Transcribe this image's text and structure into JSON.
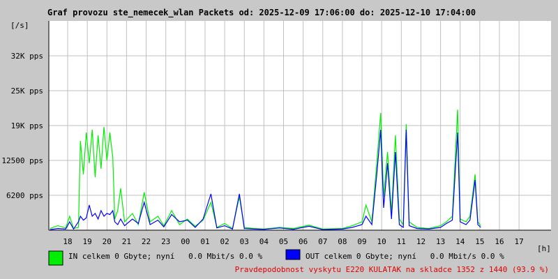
{
  "chart_data": {
    "type": "line",
    "title": "Graf provozu ste_nemecek_wlan Packets od: 2025-12-09 17:06:00 do: 2025-12-10 17:04:00",
    "y_unit": "[/s]",
    "x_unit": "[h]",
    "footnote": "Pravdepodobnost vyskytu E220 KULATAK na skladce 1352 z 1440 (93.9 %)",
    "xlim": [
      17.04,
      42.63
    ],
    "xticks": [
      18,
      19,
      20,
      21,
      22,
      23,
      {
        "value": 24,
        "label": "00"
      },
      {
        "value": 25,
        "label": "01"
      },
      {
        "value": 26,
        "label": "02"
      },
      {
        "value": 27,
        "label": "03"
      },
      {
        "value": 28,
        "label": "04"
      },
      {
        "value": 29,
        "label": "05"
      },
      {
        "value": 30,
        "label": "06"
      },
      {
        "value": 31,
        "label": "07"
      },
      {
        "value": 32,
        "label": "08"
      },
      {
        "value": 33,
        "label": "09"
      },
      {
        "value": 34,
        "label": "10"
      },
      {
        "value": 35,
        "label": "11"
      },
      {
        "value": 36,
        "label": "12"
      },
      {
        "value": 37,
        "label": "13"
      },
      {
        "value": 38,
        "label": "14"
      },
      {
        "value": 39,
        "label": "15"
      },
      {
        "value": 40,
        "label": "16"
      },
      {
        "value": 41,
        "label": "17"
      }
    ],
    "ylim": [
      0,
      37500
    ],
    "yticks": [
      {
        "value": 6250,
        "label": "6200 pps"
      },
      {
        "value": 12500,
        "label": "12500 pps"
      },
      {
        "value": 18750,
        "label": "19K pps"
      },
      {
        "value": 25000,
        "label": "25K pps"
      },
      {
        "value": 31250,
        "label": "32K pps"
      }
    ],
    "grid": true,
    "x": [
      17.1,
      17.5,
      17.9,
      18.1,
      18.3,
      18.55,
      18.65,
      18.8,
      18.95,
      19.1,
      19.25,
      19.4,
      19.55,
      19.7,
      19.85,
      20.0,
      20.15,
      20.3,
      20.4,
      20.55,
      20.7,
      20.9,
      21.3,
      21.6,
      21.9,
      22.2,
      22.6,
      22.9,
      23.3,
      23.7,
      24.1,
      24.5,
      24.9,
      25.3,
      25.6,
      26.0,
      26.4,
      26.75,
      27.0,
      27.5,
      28.0,
      28.8,
      29.5,
      30.3,
      31.0,
      32.0,
      32.5,
      33.0,
      33.2,
      33.5,
      33.75,
      33.95,
      34.1,
      34.3,
      34.5,
      34.7,
      34.9,
      35.1,
      35.25,
      35.4,
      35.8,
      36.4,
      37.0,
      37.3,
      37.6,
      37.87,
      38.0,
      38.3,
      38.5,
      38.76,
      38.9,
      39.05
    ],
    "series": [
      {
        "name": "IN celkem 0 Gbyte; nyní   0.0 Mbit/s 0.0 %",
        "color": "#00ee00",
        "values": [
          300,
          800,
          400,
          2500,
          300,
          500,
          16000,
          10000,
          17500,
          12000,
          18000,
          9500,
          17000,
          11000,
          18500,
          12500,
          17500,
          13000,
          2000,
          3500,
          7500,
          1500,
          3000,
          1000,
          6800,
          1500,
          2500,
          800,
          3500,
          1000,
          2000,
          700,
          1800,
          5000,
          500,
          1200,
          300,
          6000,
          500,
          300,
          200,
          500,
          300,
          900,
          200,
          300,
          800,
          1500,
          4500,
          1500,
          12000,
          21000,
          6000,
          14000,
          3000,
          17000,
          2000,
          1000,
          19000,
          1500,
          500,
          300,
          800,
          1500,
          2500,
          21600,
          2000,
          1500,
          2500,
          10000,
          1500,
          800
        ]
      },
      {
        "name": "OUT celkem 0 Gbyte; nyní   0.0 Mbit/s 0.0 %",
        "color": "#0000ff",
        "values": [
          100,
          300,
          200,
          1500,
          200,
          1500,
          2500,
          1800,
          2200,
          4500,
          2500,
          3000,
          2000,
          3500,
          2500,
          3000,
          2800,
          3500,
          1500,
          1000,
          2000,
          800,
          2000,
          1200,
          5000,
          1000,
          1800,
          600,
          2800,
          1500,
          1800,
          500,
          2000,
          6500,
          400,
          800,
          200,
          6500,
          300,
          200,
          150,
          400,
          150,
          700,
          100,
          200,
          500,
          1000,
          2500,
          1000,
          10000,
          18000,
          4000,
          12000,
          2000,
          14000,
          1000,
          500,
          18000,
          800,
          300,
          200,
          500,
          1200,
          1800,
          17500,
          1500,
          1000,
          1800,
          9000,
          1000,
          500
        ]
      }
    ]
  }
}
